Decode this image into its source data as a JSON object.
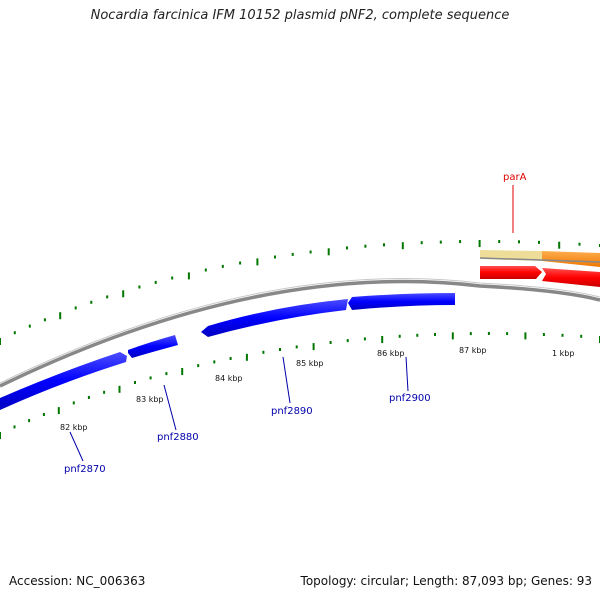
{
  "title": "Nocardia farcinica IFM 10152 plasmid pNF2, complete sequence",
  "footer": {
    "accession": "Accession: NC_006363",
    "topology": "Topology: circular; Length: 87,093 bp; Genes: 93"
  },
  "colors": {
    "forward_gene": "#ff0000",
    "reverse_gene": "#0000ff",
    "partition_band_left": "#eedd99",
    "partition_band_right": "#ff8800",
    "gc_ticks": "#007700",
    "backbone": "#888888",
    "label_forward": "#dd0000",
    "label_reverse": "#0000aa"
  },
  "scale": {
    "unit": "kbp",
    "labels": [
      "82 kbp",
      "83 kbp",
      "84 kbp",
      "85 kbp",
      "86 kbp",
      "87 kbp",
      "1 kbp"
    ]
  },
  "gene_labels": [
    {
      "text": "parA",
      "strand": "forward"
    },
    {
      "text": "pnf2870",
      "strand": "reverse"
    },
    {
      "text": "pnf2880",
      "strand": "reverse"
    },
    {
      "text": "pnf2890",
      "strand": "reverse"
    },
    {
      "text": "pnf2900",
      "strand": "reverse"
    }
  ]
}
